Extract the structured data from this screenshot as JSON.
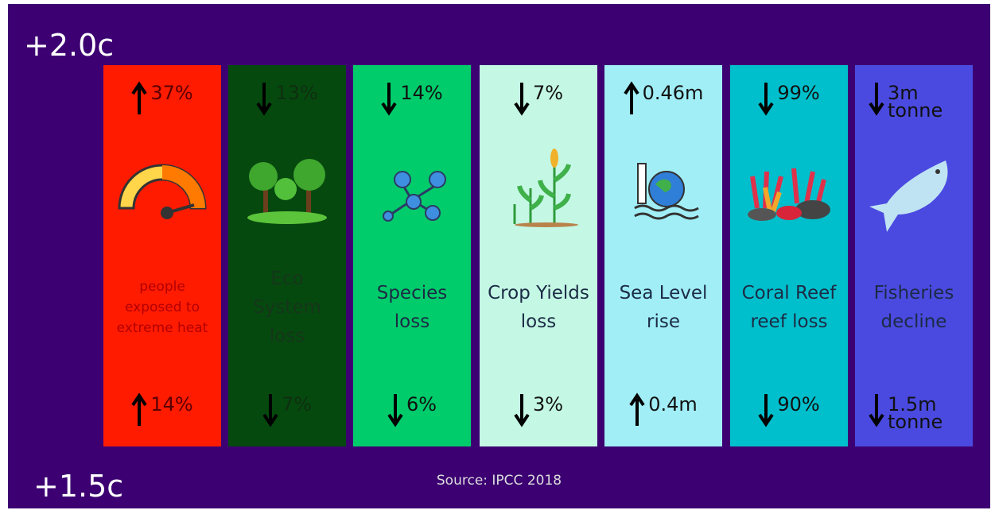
{
  "header": {
    "top_label": "+2.0c",
    "bottom_label": "+1.5c"
  },
  "columns": [
    {
      "top": "37%",
      "label": "people exposed to extreme heat",
      "bottom": "14%"
    },
    {
      "top": "13%",
      "label": "Eco System loss",
      "bottom": "7%"
    },
    {
      "top": "14%",
      "label": "Species loss",
      "bottom": "6%"
    },
    {
      "top": "7%",
      "label": "Crop Yields loss",
      "bottom": "3%"
    },
    {
      "top": "0.46m",
      "label": "Sea Level rise",
      "bottom": "0.4m"
    },
    {
      "top": "99%",
      "label": "Coral Reef reef loss",
      "bottom": "90%"
    },
    {
      "top": "3m tonne",
      "label": "Fisheries decline",
      "bottom": "1.5m tonne"
    }
  ],
  "footer": {
    "source": "Source: IPCC 2018"
  }
}
